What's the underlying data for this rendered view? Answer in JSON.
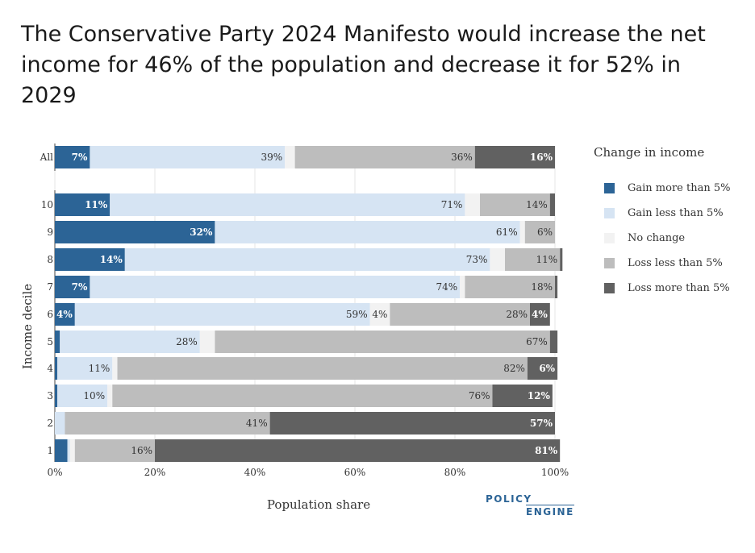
{
  "title": "The Conservative Party 2024 Manifesto would increase the net income for 46% of the population and decrease it for 52% in 2029",
  "logo": {
    "line1": "POLICY",
    "line2": "ENGINE"
  },
  "chart_data": {
    "type": "bar",
    "orientation": "horizontal",
    "stacked": true,
    "xlabel": "Population share",
    "ylabel": "Income decile",
    "xlim": [
      0,
      100
    ],
    "xticks": [
      "0%",
      "20%",
      "40%",
      "60%",
      "80%",
      "100%"
    ],
    "grid": true,
    "legend_title": "Change in income",
    "legend_position": "right",
    "categories": [
      "All",
      "10",
      "9",
      "8",
      "7",
      "6",
      "5",
      "4",
      "3",
      "2",
      "1"
    ],
    "series": [
      {
        "name": "Gain more than 5%",
        "color": "#2c6496",
        "values": [
          7,
          11,
          32,
          14,
          7,
          4,
          1,
          0.5,
          0.5,
          0,
          2.5
        ]
      },
      {
        "name": "Gain less than 5%",
        "color": "#d6e4f3",
        "values": [
          39,
          71,
          61,
          73,
          74,
          59,
          28,
          11,
          10,
          2,
          0.5
        ]
      },
      {
        "name": "No change",
        "color": "#f2f2f2",
        "values": [
          2,
          3,
          1,
          3,
          1,
          4,
          3,
          1,
          1,
          0,
          1
        ]
      },
      {
        "name": "Loss less than 5%",
        "color": "#bdbdbd",
        "values": [
          36,
          14,
          6,
          11,
          18,
          28,
          67,
          82,
          76,
          41,
          16
        ]
      },
      {
        "name": "Loss more than 5%",
        "color": "#616161",
        "values": [
          16,
          1,
          0,
          0.5,
          0.5,
          4,
          1.5,
          6,
          12,
          57,
          81
        ]
      }
    ]
  }
}
